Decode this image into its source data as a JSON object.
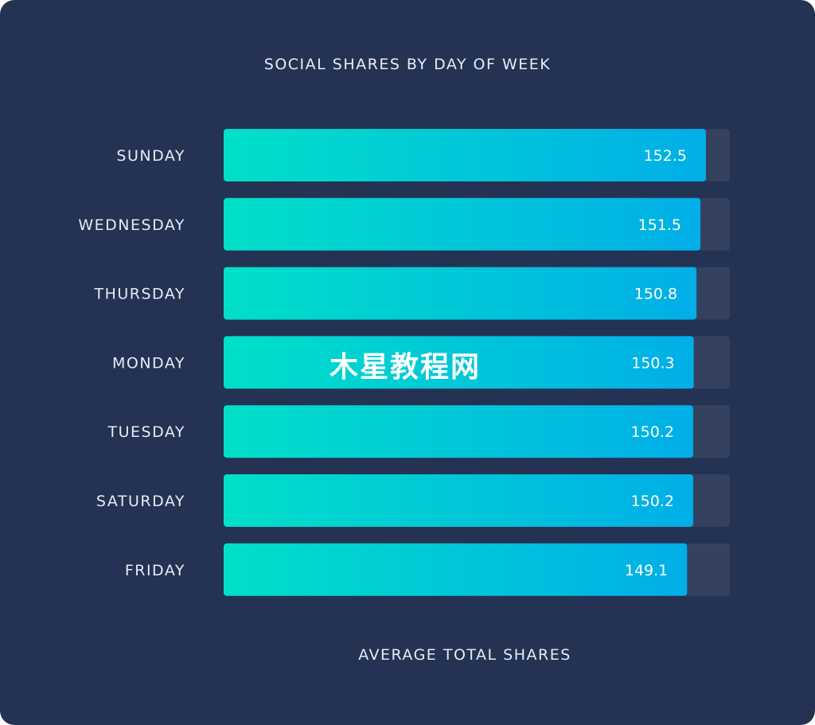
{
  "chart_data": {
    "type": "bar",
    "orientation": "horizontal",
    "title": "SOCIAL SHARES BY DAY OF WEEK",
    "xlabel": "AVERAGE TOTAL SHARES",
    "ylabel": "",
    "categories": [
      "SUNDAY",
      "WEDNESDAY",
      "THURSDAY",
      "MONDAY",
      "TUESDAY",
      "SATURDAY",
      "FRIDAY"
    ],
    "values": [
      152.5,
      151.5,
      150.8,
      150.3,
      150.2,
      150.2,
      149.1
    ],
    "value_labels": [
      "152.5",
      "151.5",
      "150.8",
      "150.3",
      "150.2",
      "150.2",
      "149.1"
    ],
    "xlim": [
      0,
      160
    ],
    "grid": false,
    "colors": {
      "background": "#243253",
      "track": "#34425f",
      "bar_start": "#00e0c8",
      "bar_end": "#00aee8",
      "text": "#e6ebf5"
    }
  },
  "watermark": "木星教程网"
}
